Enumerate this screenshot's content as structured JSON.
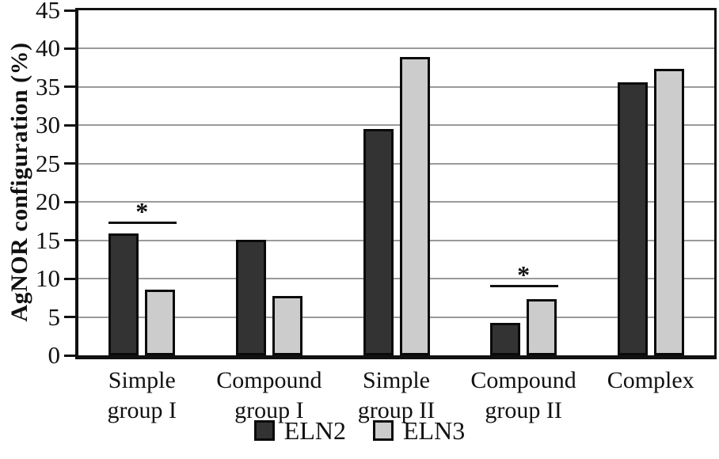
{
  "chart_data": {
    "type": "bar",
    "title": "",
    "ylabel": "AgNOR configuration (%)",
    "xlabel": "",
    "ylim": [
      0,
      45
    ],
    "yticks": [
      0,
      5,
      10,
      15,
      20,
      25,
      30,
      35,
      40,
      45
    ],
    "grid": true,
    "legend_position": "bottom-center",
    "categories": [
      "Simple group I",
      "Compound group I",
      "Simple group II",
      "Compound group II",
      "Complex"
    ],
    "category_lines": [
      [
        "Simple",
        "group I"
      ],
      [
        "Compound",
        "group I"
      ],
      [
        "Simple",
        "group II"
      ],
      [
        "Compound",
        "group II"
      ],
      [
        "Complex"
      ]
    ],
    "series": [
      {
        "name": "ELN2",
        "color": "#333333",
        "values": [
          15.9,
          15.1,
          29.5,
          4.2,
          35.6
        ]
      },
      {
        "name": "ELN3",
        "color": "#cccccc",
        "values": [
          8.6,
          7.7,
          38.9,
          7.3,
          37.4
        ]
      }
    ],
    "annotations": [
      {
        "category_index": 0,
        "label": "*",
        "y_value": 17.1
      },
      {
        "category_index": 3,
        "label": "*",
        "y_value": 8.9
      }
    ],
    "colors": {
      "axis": "#111111",
      "gridline": "#9a9a9a",
      "bar_border": "#0a0a0a",
      "background": "#ffffff"
    }
  }
}
